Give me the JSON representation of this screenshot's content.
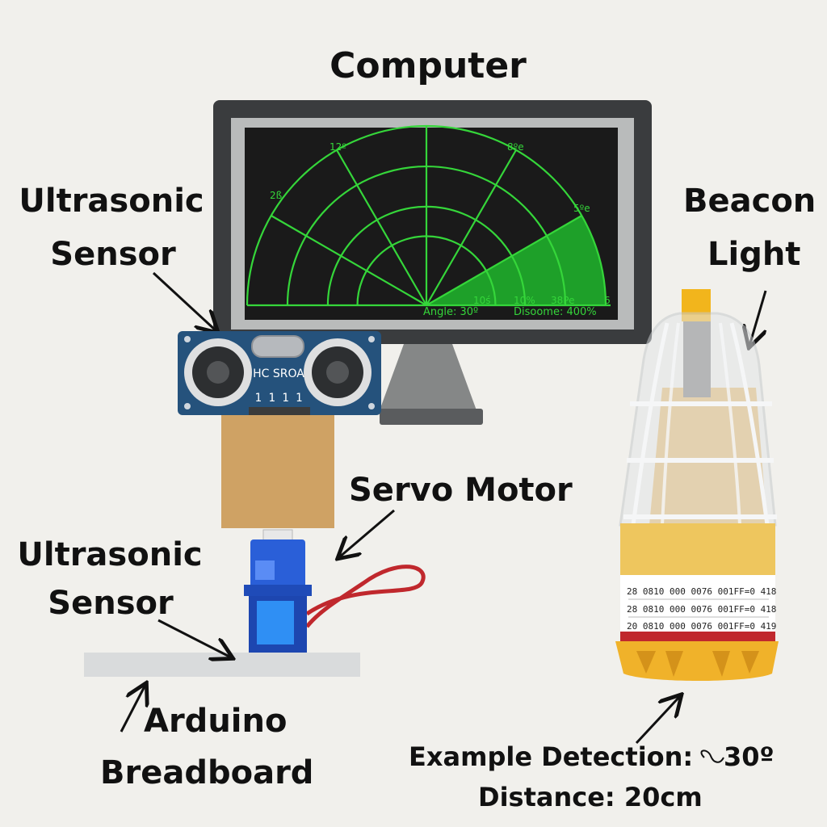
{
  "labels": {
    "computer": "Computer",
    "ultrasonic_sensor_top_line1": "Ultrasonic",
    "ultrasonic_sensor_top_line2": "Sensor",
    "beacon_line1": "Beacon",
    "beacon_line2": "Light",
    "servo_motor": "Servo Motor",
    "ultrasonic_sensor_bottom_line1": "Ultrasonic",
    "ultrasonic_sensor_bottom_line2": "Sensor",
    "arduino_line1": "Arduino",
    "arduino_line2": "Breadboard",
    "example_detection": "Example Detection:",
    "example_angle": "30º",
    "example_distance": "Distance: 20cm"
  },
  "radar_screen": {
    "angle_readout": "Angle: 30º",
    "distance_readout": "Disoome: 400%",
    "ring_labels": [
      "10ś",
      "10%",
      "38Pe",
      "6"
    ],
    "angle_labels": [
      "2ß",
      "12º",
      "8ºe",
      "5ºe"
    ],
    "sweep_angle_deg": 30
  },
  "sensor": {
    "model_text": "HC SROA",
    "pins_text": "1 1 1 1"
  },
  "beacon": {
    "label_lines": [
      "28 0810  000  0076  001FF=0 418",
      "28 0810  000  0076  001FF=0 418",
      "20 0810  000  0076  001FF=0 419"
    ]
  },
  "colors": {
    "background": "#f1f0ec",
    "radar_green": "#35d63a",
    "sweep_fill": "#1fa82a",
    "sensor_board": "#25527c",
    "servo_blue": "#2a5fd8",
    "beacon_amber": "#f0b22a",
    "wire_red": "#c0282d"
  }
}
